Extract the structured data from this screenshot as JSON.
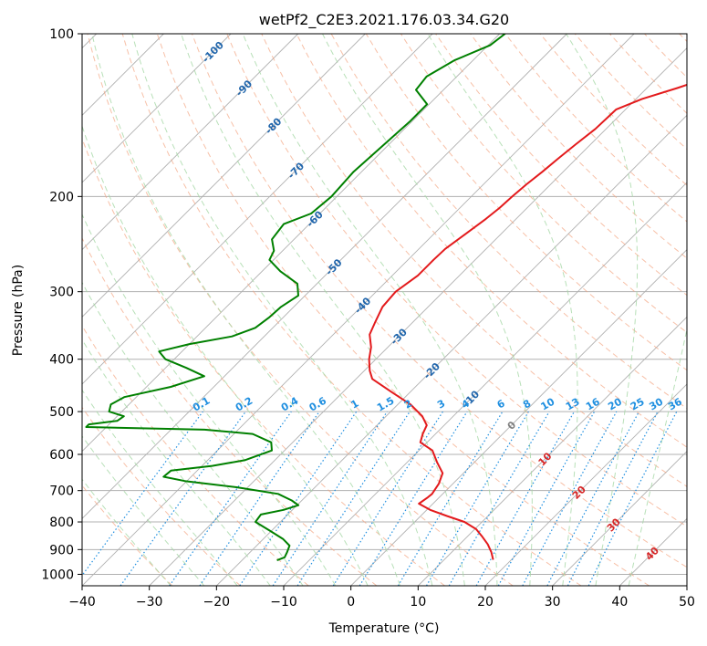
{
  "chart_data": {
    "type": "skew-t",
    "title": "wetPf2_C2E3.2021.176.03.34.G20",
    "xlabel": "Temperature (°C)",
    "ylabel": "Pressure (hPa)",
    "xlim": [
      -40,
      50
    ],
    "ylim": [
      1050,
      100
    ],
    "y_scale": "log",
    "skew": 45,
    "grid": true,
    "x_ticks": [
      "−40",
      "−30",
      "−20",
      "−10",
      "0",
      "10",
      "20",
      "30",
      "40",
      "50"
    ],
    "y_ticks": [
      "100",
      "200",
      "300",
      "400",
      "500",
      "600",
      "700",
      "800",
      "900",
      "1000"
    ],
    "colors": {
      "temperature": "#e31a1c",
      "dewpoint": "#008000",
      "dry_adiabat": "#f4a582",
      "moist_adiabat": "#a6d8a6",
      "mixing_ratio": "#1f8fe0",
      "isotherm": "#999999",
      "isotherm_label": "#2166ac",
      "isotherm_label_warm": "#d62728"
    },
    "isotherm_labels": [
      {
        "t": -100,
        "p": 108,
        "text": "-100"
      },
      {
        "t": -90,
        "p": 126,
        "text": "-90"
      },
      {
        "t": -80,
        "p": 148,
        "text": "-80"
      },
      {
        "t": -70,
        "p": 179,
        "text": "-70"
      },
      {
        "t": -60,
        "p": 220,
        "text": "-60"
      },
      {
        "t": -50,
        "p": 270,
        "text": "-50"
      },
      {
        "t": -40,
        "p": 318,
        "text": "-40"
      },
      {
        "t": -30,
        "p": 363,
        "text": "-30"
      },
      {
        "t": -20,
        "p": 420,
        "text": "-20"
      },
      {
        "t": -10,
        "p": 473,
        "text": "-10"
      },
      {
        "t": 0,
        "p": 530,
        "text": "0"
      },
      {
        "t": 10,
        "p": 612,
        "text": "10"
      },
      {
        "t": 20,
        "p": 705,
        "text": "20"
      },
      {
        "t": 30,
        "p": 810,
        "text": "30"
      },
      {
        "t": 40,
        "p": 915,
        "text": "40"
      }
    ],
    "mixing_ratio_labels": [
      "0.1",
      "0.2",
      "0.4",
      "0.6",
      "1",
      "1.5",
      "2",
      "3",
      "4",
      "6",
      "8",
      "10",
      "13",
      "16",
      "20",
      "25",
      "30",
      "36"
    ],
    "series": [
      {
        "name": "",
        "kind": "temperature",
        "points": [
          [
            -16.1,
            100
          ],
          [
            -16.1,
            104
          ],
          [
            -17.2,
            110
          ],
          [
            -20.9,
            118
          ],
          [
            -25.5,
            126
          ],
          [
            -29.1,
            132
          ],
          [
            -31.4,
            138
          ],
          [
            -31.6,
            150
          ],
          [
            -32.2,
            160
          ],
          [
            -32.7,
            170
          ],
          [
            -33.1,
            180
          ],
          [
            -33.6,
            190
          ],
          [
            -33.9,
            200
          ],
          [
            -34.1,
            210
          ],
          [
            -34.5,
            220
          ],
          [
            -35.3,
            235
          ],
          [
            -36.1,
            250
          ],
          [
            -36.2,
            262
          ],
          [
            -36.2,
            280
          ],
          [
            -37.1,
            300
          ],
          [
            -36.8,
            320
          ],
          [
            -35.7,
            340
          ],
          [
            -34.6,
            360
          ],
          [
            -32.5,
            380
          ],
          [
            -31.0,
            400
          ],
          [
            -29.2,
            420
          ],
          [
            -27.6,
            435
          ],
          [
            -22.8,
            460
          ],
          [
            -18.1,
            485
          ],
          [
            -14.6,
            510
          ],
          [
            -12.6,
            530
          ],
          [
            -11.9,
            550
          ],
          [
            -11.0,
            570
          ],
          [
            -8.0,
            590
          ],
          [
            -5.6,
            620
          ],
          [
            -3.1,
            650
          ],
          [
            -2.1,
            680
          ],
          [
            -1.6,
            710
          ],
          [
            -1.7,
            720
          ],
          [
            -2.1,
            740
          ],
          [
            0.5,
            760
          ],
          [
            3.9,
            780
          ],
          [
            7.4,
            800
          ],
          [
            10.2,
            825
          ],
          [
            12.1,
            850
          ],
          [
            14.2,
            880
          ],
          [
            15.9,
            910
          ],
          [
            17.3,
            940
          ]
        ]
      },
      {
        "name": "",
        "kind": "dewpoint",
        "points": [
          [
            -59.2,
            100
          ],
          [
            -59.7,
            105
          ],
          [
            -62.8,
            112
          ],
          [
            -64.5,
            120
          ],
          [
            -64.1,
            127
          ],
          [
            -60.3,
            135
          ],
          [
            -60.3,
            145
          ],
          [
            -60.7,
            160
          ],
          [
            -61.2,
            180
          ],
          [
            -60.8,
            200
          ],
          [
            -61.3,
            215
          ],
          [
            -63.8,
            225
          ],
          [
            -63.3,
            240
          ],
          [
            -61.3,
            252
          ],
          [
            -60.6,
            262
          ],
          [
            -57.3,
            275
          ],
          [
            -52.9,
            290
          ],
          [
            -51.0,
            305
          ],
          [
            -51.9,
            320
          ],
          [
            -52.1,
            335
          ],
          [
            -52.6,
            350
          ],
          [
            -54.8,
            363
          ],
          [
            -60.0,
            375
          ],
          [
            -63.4,
            387
          ],
          [
            -61.3,
            400
          ],
          [
            -56.9,
            415
          ],
          [
            -53.0,
            430
          ],
          [
            -56.4,
            450
          ],
          [
            -61.8,
            470
          ],
          [
            -62.7,
            485
          ],
          [
            -61.9,
            500
          ],
          [
            -59.0,
            510
          ],
          [
            -59.3,
            520
          ],
          [
            -63.0,
            528
          ],
          [
            -63.0,
            534
          ],
          [
            -45.0,
            540
          ],
          [
            -37.2,
            550
          ],
          [
            -33.2,
            570
          ],
          [
            -31.9,
            590
          ],
          [
            -34.5,
            615
          ],
          [
            -38.5,
            630
          ],
          [
            -43.9,
            643
          ],
          [
            -44.1,
            660
          ],
          [
            -40.3,
            672
          ],
          [
            -31.7,
            690
          ],
          [
            -24.5,
            710
          ],
          [
            -21.5,
            730
          ],
          [
            -19.8,
            745
          ],
          [
            -21.3,
            760
          ],
          [
            -24.0,
            775
          ],
          [
            -23.7,
            800
          ],
          [
            -20.3,
            830
          ],
          [
            -17.1,
            860
          ],
          [
            -15.1,
            885
          ],
          [
            -14.5,
            910
          ],
          [
            -14.1,
            930
          ],
          [
            -14.8,
            942
          ]
        ]
      }
    ]
  }
}
